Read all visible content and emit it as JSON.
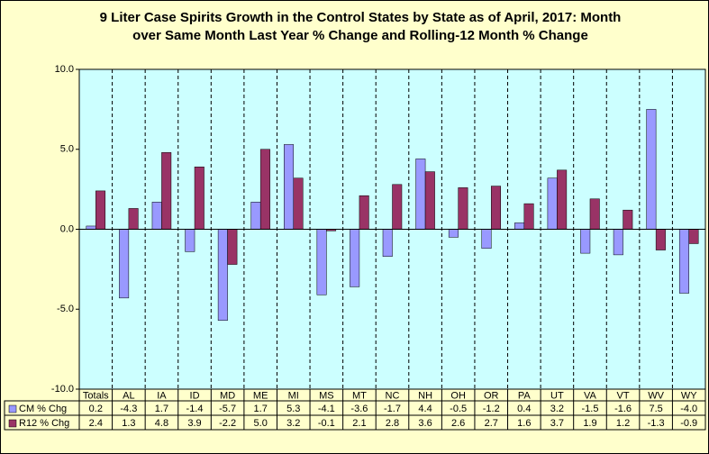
{
  "chart_data": {
    "type": "bar",
    "title": [
      "9 Liter Case Spirits Growth in the Control States by State as of April, 2017: Month",
      "over Same Month Last Year % Change and Rolling-12 Month % Change"
    ],
    "categories": [
      "Totals",
      "AL",
      "IA",
      "ID",
      "MD",
      "ME",
      "MI",
      "MS",
      "MT",
      "NC",
      "NH",
      "OH",
      "OR",
      "PA",
      "UT",
      "VA",
      "VT",
      "WV",
      "WY"
    ],
    "series": [
      {
        "name": "CM % Chg",
        "color": "#9999ff",
        "values": [
          0.2,
          -4.3,
          1.7,
          -1.4,
          -5.7,
          1.7,
          5.3,
          -4.1,
          -3.6,
          -1.7,
          4.4,
          -0.5,
          -1.2,
          0.4,
          3.2,
          -1.5,
          -1.6,
          7.5,
          -4.0
        ],
        "value_labels": [
          "0.2",
          "-4.3",
          "1.7",
          "-1.4",
          "-5.7",
          "1.7",
          "5.3",
          "-4.1",
          "-3.6",
          "-1.7",
          "4.4",
          "-0.5",
          "-1.2",
          "0.4",
          "3.2",
          "-1.5",
          "-1.6",
          "7.5",
          "-4.0"
        ]
      },
      {
        "name": "R12 % Chg",
        "color": "#993366",
        "values": [
          2.4,
          1.3,
          4.8,
          3.9,
          -2.2,
          5.0,
          3.2,
          -0.1,
          2.1,
          2.8,
          3.6,
          2.6,
          2.7,
          1.6,
          3.7,
          1.9,
          1.2,
          -1.3,
          -0.9
        ],
        "value_labels": [
          "2.4",
          "1.3",
          "4.8",
          "3.9",
          "-2.2",
          "5.0",
          "3.2",
          "-0.1",
          "2.1",
          "2.8",
          "3.6",
          "2.6",
          "2.7",
          "1.6",
          "3.7",
          "1.9",
          "1.2",
          "-1.3",
          "-0.9"
        ]
      }
    ],
    "ylim": [
      -10,
      10
    ],
    "yticks": [
      {
        "value": 10,
        "label": "10.0"
      },
      {
        "value": 5,
        "label": "5.0"
      },
      {
        "value": 0,
        "label": "0.0"
      },
      {
        "value": -5,
        "label": "-5.0"
      },
      {
        "value": -10,
        "label": "-10.0"
      }
    ],
    "plot_background": "#ccffff"
  }
}
